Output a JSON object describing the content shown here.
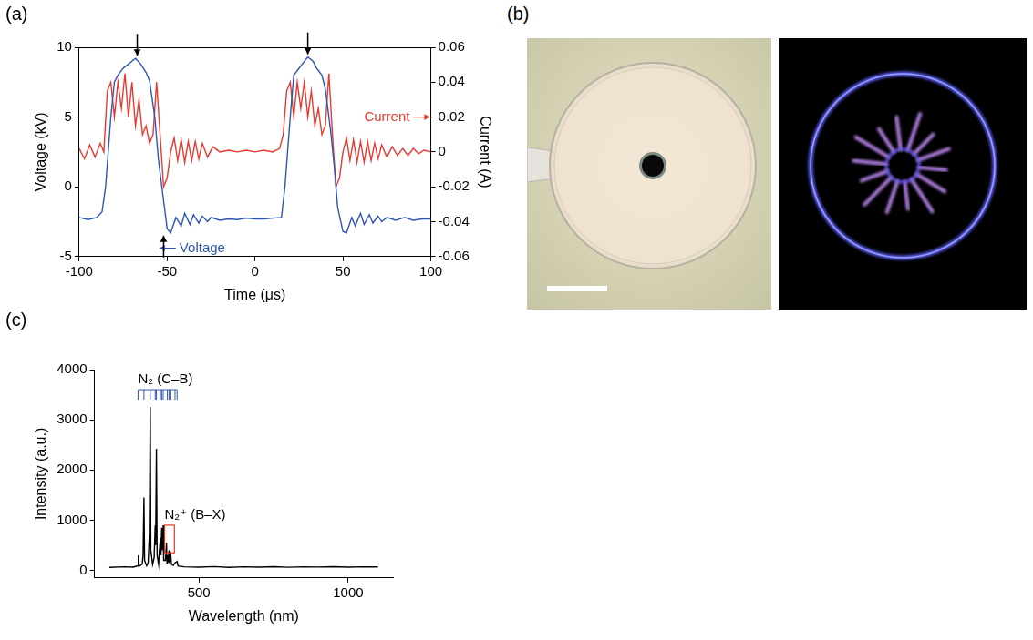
{
  "chart_data": [
    {
      "panel_label": "(a)",
      "type": "line",
      "xlabel": "Time (μs)",
      "ylabel": "Voltage (kV)",
      "y2label": "Current (A)",
      "xlim": [
        -100,
        100
      ],
      "xticks": [
        -100,
        -50,
        0,
        50,
        100
      ],
      "ylim": [
        -5,
        10
      ],
      "yticks": [
        -5,
        0,
        5,
        10
      ],
      "y2lim": [
        -0.06,
        0.06
      ],
      "y2ticks": [
        -0.06,
        -0.04,
        -0.02,
        0,
        0.02,
        0.04,
        0.06
      ],
      "grid": false,
      "series": [
        {
          "name": "Voltage",
          "color": "#2f55b4",
          "label_position": {
            "x": -30,
            "y": -4.4
          },
          "x": [
            -100,
            -95,
            -90,
            -87,
            -85,
            -82,
            -80,
            -78,
            -75,
            -72,
            -70,
            -68,
            -65,
            -62,
            -60,
            -57,
            -55,
            -52,
            -50,
            -48,
            -45,
            -42,
            -40,
            -37,
            -35,
            -32,
            -30,
            -27,
            -25,
            -20,
            -15,
            -10,
            -5,
            0,
            5,
            10,
            15,
            17,
            20,
            22,
            25,
            28,
            30,
            33,
            35,
            38,
            40,
            43,
            45,
            47,
            50,
            52,
            55,
            57,
            60,
            62,
            65,
            67,
            70,
            72,
            75,
            80,
            85,
            90,
            95,
            100
          ],
          "values": [
            -2.2,
            -2.35,
            -2.2,
            -1.8,
            0,
            5,
            7.5,
            8,
            8.5,
            8.8,
            9,
            9.2,
            8.8,
            8.2,
            7.6,
            5,
            2,
            -1,
            -3,
            -3.3,
            -2.2,
            -2.8,
            -1.9,
            -2.7,
            -2,
            -2.6,
            -2.1,
            -2.5,
            -2.2,
            -2.4,
            -2.3,
            -2.35,
            -2.25,
            -2.3,
            -2.3,
            -2.25,
            -2.2,
            0,
            5,
            8,
            8.5,
            9,
            9.3,
            9,
            8.5,
            8,
            7,
            4,
            1.5,
            -1.5,
            -3.2,
            -3.3,
            -2.2,
            -2.8,
            -1.9,
            -2.7,
            -2,
            -2.6,
            -2.1,
            -2.5,
            -2.2,
            -2.4,
            -2.2,
            -2.4,
            -2.3,
            -2.3
          ]
        },
        {
          "name": "Current",
          "color": "#e53a30",
          "axis": "y2",
          "label_position": {
            "x": 75,
            "y": 0.02
          },
          "x": [
            -100,
            -97,
            -94,
            -91,
            -88,
            -86,
            -84,
            -82,
            -80,
            -78,
            -76,
            -74,
            -72,
            -70,
            -68,
            -66,
            -64,
            -62,
            -60,
            -58,
            -56,
            -54,
            -52,
            -50,
            -48,
            -46,
            -44,
            -42,
            -40,
            -38,
            -36,
            -34,
            -32,
            -30,
            -27,
            -24,
            -20,
            -15,
            -10,
            -5,
            0,
            5,
            10,
            14,
            16,
            18,
            20,
            22,
            24,
            26,
            28,
            30,
            32,
            34,
            36,
            38,
            40,
            42,
            44,
            46,
            48,
            50,
            52,
            54,
            56,
            58,
            60,
            62,
            64,
            66,
            68,
            70,
            72,
            75,
            78,
            81,
            84,
            87,
            90,
            93,
            96,
            100
          ],
          "values": [
            0.002,
            -0.004,
            0.004,
            -0.003,
            0.005,
            0,
            0.035,
            0.04,
            0.02,
            0.04,
            0.025,
            0.045,
            0.02,
            0.04,
            0.015,
            0.03,
            0.01,
            0.015,
            0.005,
            0.01,
            0.04,
            0.01,
            -0.02,
            -0.015,
            0,
            0.008,
            -0.005,
            0.007,
            -0.006,
            0.006,
            -0.005,
            0.006,
            -0.004,
            0.005,
            -0.003,
            0.003,
            0,
            0.001,
            0,
            0.001,
            0,
            0.001,
            0,
            0.002,
            0.01,
            0.035,
            0.04,
            0.02,
            0.04,
            0.025,
            0.04,
            0.02,
            0.035,
            0.015,
            0.025,
            0.01,
            0.015,
            0.045,
            0.01,
            -0.02,
            -0.015,
            0,
            0.008,
            -0.005,
            0.007,
            -0.006,
            0.006,
            -0.006,
            0.006,
            -0.005,
            0.005,
            -0.004,
            0.004,
            -0.003,
            0.003,
            -0.002,
            0.002,
            -0.002,
            0.002,
            -0.001,
            0.001,
            0
          ]
        }
      ],
      "arrows": [
        {
          "x": -67,
          "y": 9.4,
          "direction": "down"
        },
        {
          "x": 30,
          "y": 9.5,
          "direction": "down"
        },
        {
          "x": -52,
          "y": -3.5,
          "direction": "up"
        }
      ]
    },
    {
      "panel_label": "(c)",
      "type": "line",
      "xlabel": "Wavelength (nm)",
      "ylabel": "Intensity (a.u.)",
      "xlim": [
        150,
        1150
      ],
      "xticks": [
        500,
        1000
      ],
      "ylim": [
        -150,
        4000
      ],
      "yticks": [
        0,
        1000,
        2000,
        3000,
        4000
      ],
      "grid": false,
      "series": [
        {
          "color": "#000000",
          "x": [
            200,
            250,
            280,
            295,
            297,
            299,
            310,
            313,
            315.9,
            318,
            325,
            330,
            334,
            337.1,
            339,
            345,
            350,
            353.7,
            355,
            357.7,
            360,
            365,
            367,
            371.1,
            373,
            375.5,
            377,
            380.5,
            382,
            388,
            391.4,
            393,
            394.3,
            396,
            399.8,
            401,
            405.9,
            408,
            414,
            420,
            426.9,
            430,
            450,
            500,
            550,
            600,
            650,
            700,
            750,
            800,
            850,
            900,
            950,
            1000,
            1050,
            1100
          ],
          "values": [
            60,
            70,
            65,
            90,
            300,
            80,
            120,
            300,
            1450,
            200,
            90,
            150,
            700,
            3250,
            400,
            120,
            250,
            900,
            500,
            2420,
            300,
            120,
            350,
            650,
            300,
            850,
            400,
            900,
            200,
            200,
            550,
            150,
            300,
            150,
            400,
            150,
            300,
            120,
            100,
            150,
            180,
            90,
            70,
            65,
            75,
            60,
            70,
            65,
            72,
            62,
            70,
            66,
            74,
            64,
            70,
            68
          ]
        }
      ],
      "band_markers": {
        "text": "N₂ (C–B)",
        "color": "#2f55b4",
        "positions": [
          296.2,
          315.9,
          337.1,
          353.7,
          357.7,
          371.1,
          375.5,
          380.5,
          394.3,
          399.8,
          405.9,
          420,
          426.9
        ],
        "y": [
          3400,
          3600
        ]
      },
      "band_box": {
        "text": "N₂⁺ (B–X)",
        "color": "#e53a30",
        "x": [
          385,
          418
        ],
        "y": [
          350,
          900
        ]
      }
    }
  ],
  "photo_panel": {
    "panel_label": "(b)"
  }
}
